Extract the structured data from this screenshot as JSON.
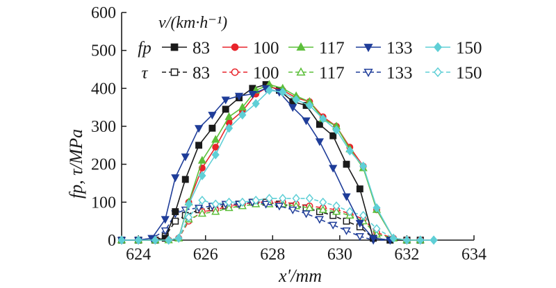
{
  "chart_data": {
    "type": "line",
    "title": "",
    "xlabel": "x′/mm",
    "ylabel": "fp, τ/MPa",
    "xlim": [
      623.5,
      634
    ],
    "ylim": [
      0,
      600
    ],
    "xticks": [
      "624",
      "626",
      "628",
      "630",
      "632",
      "634"
    ],
    "yticks": [
      "0",
      "100",
      "200",
      "300",
      "400",
      "500",
      "600"
    ],
    "grid": false,
    "legend": {
      "placement": "top-right",
      "header": "v/(km·h⁻¹)",
      "group_labels": [
        "fp",
        "τ"
      ],
      "speeds": [
        "83",
        "100",
        "117",
        "133",
        "150"
      ]
    },
    "series": [
      {
        "name": "83",
        "group": "fp",
        "color": "#1a1a1a",
        "marker": "square",
        "filled": true,
        "dash": false,
        "x": [
          623.5,
          624.0,
          624.5,
          624.8,
          625.1,
          625.4,
          625.8,
          626.2,
          626.6,
          627.0,
          627.4,
          627.8,
          628.2,
          628.6,
          629.0,
          629.4,
          629.8,
          630.2,
          630.6,
          631.0,
          631.5,
          632.0,
          632.4
        ],
        "y": [
          0,
          0,
          0,
          5,
          75,
          160,
          250,
          295,
          345,
          375,
          400,
          410,
          395,
          365,
          355,
          305,
          275,
          200,
          135,
          5,
          0,
          0,
          0
        ]
      },
      {
        "name": "100",
        "group": "fp",
        "color": "#e8242b",
        "marker": "circle",
        "filled": true,
        "dash": false,
        "x": [
          623.5,
          624.0,
          624.5,
          624.9,
          625.2,
          625.5,
          625.9,
          626.3,
          626.7,
          627.1,
          627.5,
          627.9,
          628.3,
          628.7,
          629.1,
          629.5,
          629.9,
          630.3,
          630.7,
          631.1,
          631.6,
          632.0,
          632.4
        ],
        "y": [
          0,
          0,
          0,
          0,
          5,
          100,
          190,
          245,
          310,
          340,
          385,
          405,
          395,
          375,
          365,
          325,
          300,
          245,
          195,
          80,
          5,
          0,
          0
        ]
      },
      {
        "name": "117",
        "group": "fp",
        "color": "#5cbf3a",
        "marker": "triangle-up",
        "filled": true,
        "dash": false,
        "x": [
          623.5,
          624.0,
          624.5,
          624.9,
          625.2,
          625.5,
          625.9,
          626.3,
          626.7,
          627.1,
          627.5,
          627.9,
          628.3,
          628.7,
          629.1,
          629.5,
          629.9,
          630.3,
          630.7,
          631.1,
          631.6,
          632.0,
          632.4
        ],
        "y": [
          0,
          0,
          0,
          0,
          5,
          100,
          210,
          265,
          325,
          350,
          395,
          410,
          400,
          380,
          365,
          320,
          300,
          240,
          190,
          80,
          5,
          0,
          0
        ]
      },
      {
        "name": "133",
        "group": "fp",
        "color": "#1f3d99",
        "marker": "triangle-down",
        "filled": true,
        "dash": false,
        "x": [
          623.5,
          624.0,
          624.4,
          624.8,
          625.1,
          625.4,
          625.8,
          626.2,
          626.6,
          627.0,
          627.4,
          627.8,
          628.2,
          628.6,
          629.0,
          629.4,
          629.8,
          630.2,
          630.6,
          631.0,
          631.5
        ],
        "y": [
          0,
          0,
          5,
          55,
          165,
          220,
          295,
          330,
          370,
          380,
          385,
          400,
          390,
          350,
          315,
          260,
          190,
          115,
          45,
          5,
          0
        ]
      },
      {
        "name": "150",
        "group": "fp",
        "color": "#5fcfd6",
        "marker": "diamond",
        "filled": true,
        "dash": false,
        "x": [
          623.5,
          624.0,
          624.5,
          624.9,
          625.2,
          625.5,
          625.9,
          626.3,
          626.7,
          627.1,
          627.5,
          627.9,
          628.3,
          628.7,
          629.1,
          629.5,
          629.9,
          630.3,
          630.7,
          631.1,
          631.6,
          632.0,
          632.4,
          632.8
        ],
        "y": [
          0,
          0,
          0,
          0,
          5,
          95,
          170,
          225,
          295,
          330,
          360,
          395,
          390,
          370,
          355,
          320,
          290,
          235,
          195,
          85,
          5,
          0,
          0,
          0
        ]
      },
      {
        "name": "83",
        "group": "τ",
        "color": "#1a1a1a",
        "marker": "square",
        "filled": false,
        "dash": true,
        "x": [
          623.5,
          624.0,
          624.5,
          624.8,
          625.1,
          625.4,
          625.8,
          626.2,
          626.6,
          627.0,
          627.4,
          627.8,
          628.2,
          628.6,
          629.0,
          629.4,
          629.8,
          630.2,
          630.6,
          631.0,
          631.5,
          632.0,
          632.4
        ],
        "y": [
          0,
          0,
          0,
          10,
          50,
          65,
          80,
          85,
          90,
          95,
          100,
          100,
          95,
          90,
          85,
          75,
          65,
          50,
          35,
          5,
          0,
          0,
          0
        ]
      },
      {
        "name": "100",
        "group": "τ",
        "color": "#e8242b",
        "marker": "circle",
        "filled": false,
        "dash": true,
        "x": [
          623.5,
          624.0,
          624.5,
          624.9,
          625.2,
          625.5,
          625.9,
          626.3,
          626.7,
          627.1,
          627.5,
          627.9,
          628.3,
          628.7,
          629.1,
          629.5,
          629.9,
          630.3,
          630.7,
          631.1,
          631.6,
          632.0,
          632.4
        ],
        "y": [
          0,
          0,
          0,
          0,
          5,
          50,
          75,
          80,
          90,
          95,
          100,
          100,
          100,
          95,
          90,
          85,
          80,
          70,
          55,
          20,
          5,
          0,
          0
        ]
      },
      {
        "name": "117",
        "group": "τ",
        "color": "#5cbf3a",
        "marker": "triangle-up",
        "filled": false,
        "dash": true,
        "x": [
          623.5,
          624.0,
          624.5,
          624.9,
          625.2,
          625.5,
          625.9,
          626.3,
          626.7,
          627.1,
          627.5,
          627.9,
          628.3,
          628.7,
          629.1,
          629.5,
          629.9,
          630.3,
          630.7,
          631.1,
          631.6,
          632.0,
          632.4
        ],
        "y": [
          0,
          0,
          0,
          0,
          5,
          55,
          70,
          75,
          85,
          90,
          95,
          95,
          95,
          90,
          85,
          80,
          75,
          65,
          50,
          15,
          5,
          0,
          0
        ]
      },
      {
        "name": "133",
        "group": "τ",
        "color": "#1f3d99",
        "marker": "triangle-down",
        "filled": false,
        "dash": true,
        "x": [
          623.5,
          624.0,
          624.4,
          624.8,
          625.1,
          625.4,
          625.8,
          626.2,
          626.6,
          627.0,
          627.4,
          627.8,
          628.2,
          628.6,
          629.0,
          629.4,
          629.8,
          630.2,
          630.6,
          631.0,
          631.5
        ],
        "y": [
          0,
          0,
          5,
          25,
          70,
          80,
          85,
          90,
          95,
          95,
          100,
          95,
          90,
          80,
          70,
          55,
          40,
          25,
          10,
          0,
          0
        ]
      },
      {
        "name": "150",
        "group": "τ",
        "color": "#5fcfd6",
        "marker": "diamond",
        "filled": false,
        "dash": true,
        "x": [
          623.5,
          624.0,
          624.5,
          624.9,
          625.2,
          625.5,
          625.9,
          626.3,
          626.7,
          627.1,
          627.5,
          627.9,
          628.3,
          628.7,
          629.1,
          629.5,
          629.9,
          630.3,
          630.7,
          631.1,
          631.6,
          632.0,
          632.4,
          632.8
        ],
        "y": [
          0,
          0,
          0,
          0,
          5,
          60,
          105,
          95,
          100,
          100,
          105,
          110,
          110,
          110,
          110,
          100,
          90,
          75,
          65,
          30,
          5,
          0,
          0,
          0
        ]
      }
    ]
  }
}
